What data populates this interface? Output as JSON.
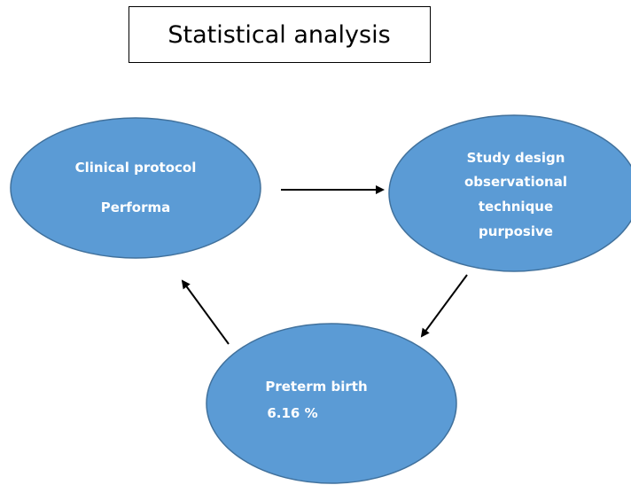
{
  "title": "Statistical analysis",
  "nodes": [
    {
      "lines": [
        "Clinical protocol",
        "Performa"
      ]
    },
    {
      "lines": [
        "Study design",
        "observational",
        "technique",
        "purposive"
      ]
    },
    {
      "lines": [
        "Preterm birth",
        "6.16 %"
      ]
    }
  ]
}
